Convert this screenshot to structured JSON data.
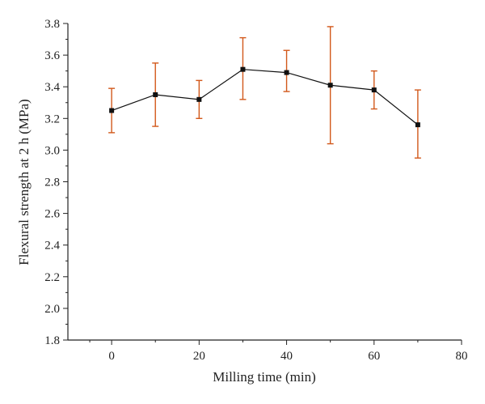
{
  "chart_data": {
    "type": "line",
    "xlabel": "Milling time (min)",
    "ylabel": "Flexural strength at 2 h (MPa)",
    "xlim": [
      -10,
      80
    ],
    "ylim": [
      1.8,
      3.8
    ],
    "x_ticks": [
      0,
      20,
      40,
      60,
      80
    ],
    "y_ticks": [
      1.8,
      2.0,
      2.2,
      2.4,
      2.6,
      2.8,
      3.0,
      3.2,
      3.4,
      3.6,
      3.8
    ],
    "x_tick_labels": [
      "0",
      "20",
      "40",
      "60",
      "80"
    ],
    "y_tick_labels": [
      "1.8",
      "2.0",
      "2.2",
      "2.4",
      "2.6",
      "2.8",
      "3.0",
      "3.2",
      "3.4",
      "3.6",
      "3.8"
    ],
    "grid": false,
    "series": [
      {
        "x": [
          0,
          10,
          20,
          30,
          40,
          50,
          60,
          70
        ],
        "y": [
          3.25,
          3.35,
          3.32,
          3.51,
          3.49,
          3.41,
          3.38,
          3.16
        ],
        "err_low": [
          3.11,
          3.15,
          3.2,
          3.32,
          3.37,
          3.04,
          3.26,
          2.95
        ],
        "err_high": [
          3.39,
          3.55,
          3.44,
          3.71,
          3.63,
          3.78,
          3.5,
          3.38
        ],
        "line_color": "#111111",
        "marker": "square",
        "error_color": "#d2581a"
      }
    ]
  }
}
